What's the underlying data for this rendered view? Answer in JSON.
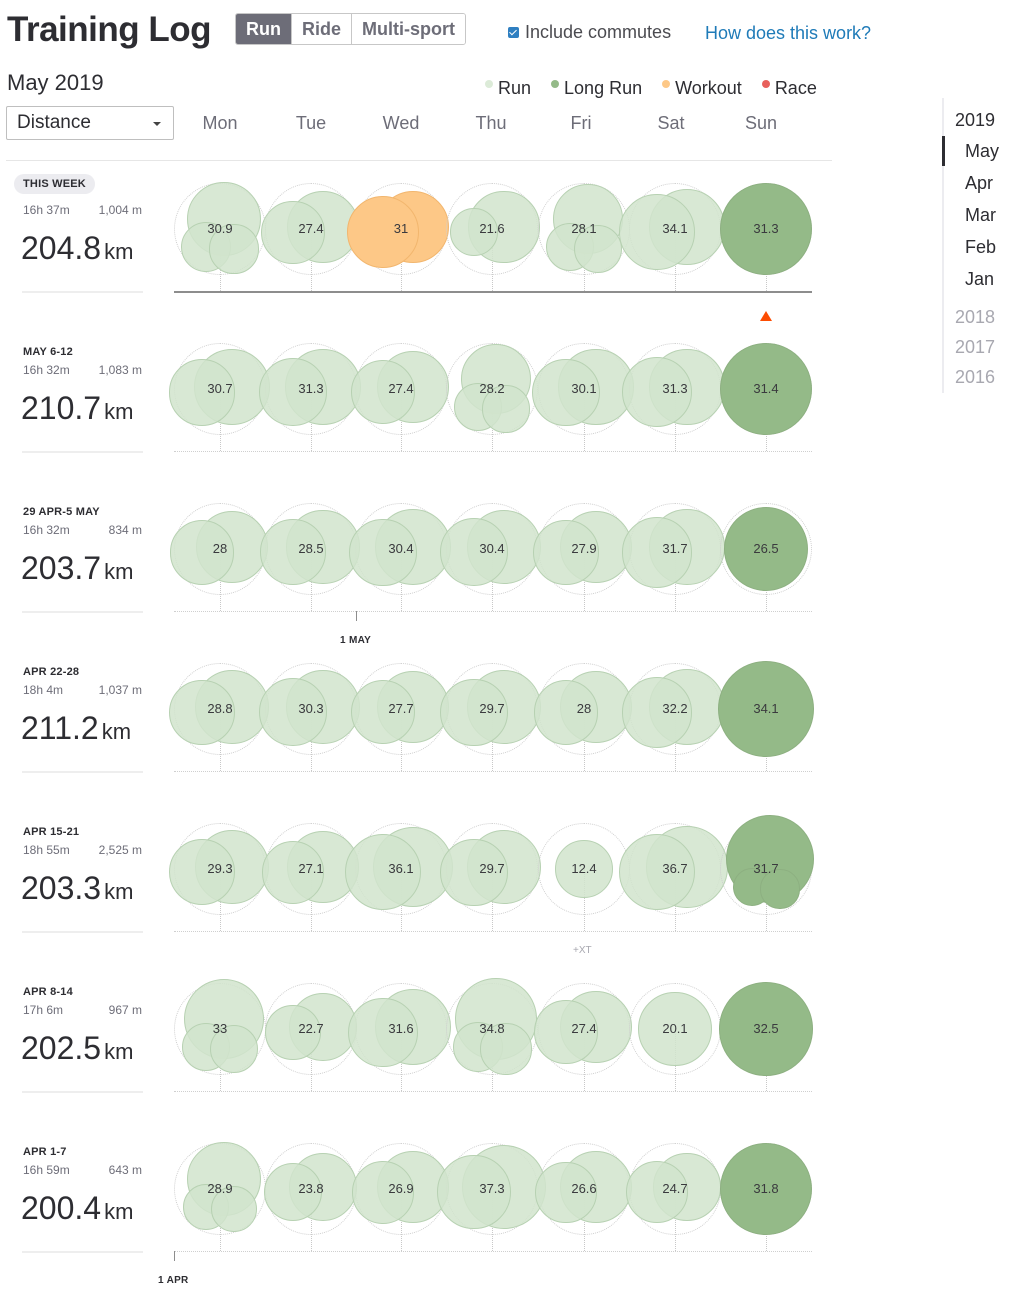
{
  "header": {
    "title": "Training Log",
    "sport_tabs": [
      "Run",
      "Ride",
      "Multi-sport"
    ],
    "active_sport": "Run",
    "commutes_label": "Include commutes",
    "commutes_checked": true,
    "help_link": "How does this work?"
  },
  "month_heading": "May 2019",
  "metric_select": {
    "value": "Distance"
  },
  "legend": [
    {
      "label": "Run",
      "color": "#dcebd8"
    },
    {
      "label": "Long Run",
      "color": "#94ba88"
    },
    {
      "label": "Workout",
      "color": "#fdc887"
    },
    {
      "label": "Race",
      "color": "#e8605c"
    }
  ],
  "days": [
    "Mon",
    "Tue",
    "Wed",
    "Thu",
    "Fri",
    "Sat",
    "Sun"
  ],
  "weeks": [
    {
      "label": "THIS WEEK",
      "time": "16h 37m",
      "elevation": "1,004 m",
      "distance": "204.8",
      "unit": "km",
      "current": true,
      "days": [
        {
          "value": "30.9",
          "type": "run",
          "activities": [
            16.4,
            7.4,
            7.1
          ]
        },
        {
          "value": "27.4",
          "type": "run",
          "activities": [
            15.6,
            11.8
          ]
        },
        {
          "value": "31",
          "type": "workout",
          "activities": [
            15.7,
            15.3
          ]
        },
        {
          "value": "21.6",
          "type": "run",
          "activities": [
            14.9,
            6.7
          ]
        },
        {
          "value": "28.1",
          "type": "run",
          "activities": [
            14.4,
            6.8,
            6.9
          ]
        },
        {
          "value": "34.1",
          "type": "run",
          "activities": [
            17.2,
            16.9
          ]
        },
        {
          "value": "31.3",
          "type": "long",
          "activities": [
            31.3
          ]
        }
      ]
    },
    {
      "label": "MAY 6-12",
      "time": "16h 32m",
      "elevation": "1,083 m",
      "distance": "210.7",
      "unit": "km",
      "days": [
        {
          "value": "30.7",
          "type": "run",
          "activities": [
            17.5,
            13.2
          ]
        },
        {
          "value": "31.3",
          "type": "run",
          "activities": [
            17.5,
            13.8
          ]
        },
        {
          "value": "27.4",
          "type": "run",
          "activities": [
            15.3,
            12.1
          ]
        },
        {
          "value": "28.2",
          "type": "run",
          "activities": [
            14.8,
            6.8,
            6.6
          ]
        },
        {
          "value": "30.1",
          "type": "run",
          "activities": [
            16.7,
            13.4
          ]
        },
        {
          "value": "31.3",
          "type": "run",
          "activities": [
            16.8,
            14.5
          ]
        },
        {
          "value": "31.4",
          "type": "long",
          "activities": [
            31.4
          ]
        }
      ]
    },
    {
      "label": "29 APR-5 MAY",
      "time": "16h 32m",
      "elevation": "834 m",
      "distance": "203.7",
      "unit": "km",
      "days": [
        {
          "value": "28",
          "type": "run",
          "activities": [
            15.6,
            12.4
          ]
        },
        {
          "value": "28.5",
          "type": "run",
          "activities": [
            15.8,
            12.7
          ]
        },
        {
          "value": "30.4",
          "type": "run",
          "activities": [
            17.0,
            13.4
          ]
        },
        {
          "value": "30.4",
          "type": "run",
          "activities": [
            16.6,
            13.8
          ]
        },
        {
          "value": "27.9",
          "type": "run",
          "activities": [
            15.4,
            12.5
          ]
        },
        {
          "value": "31.7",
          "type": "run",
          "activities": [
            16.9,
            14.8
          ]
        },
        {
          "value": "26.5",
          "type": "long",
          "activities": [
            26.5
          ]
        }
      ]
    },
    {
      "label": "APR 22-28",
      "time": "18h 4m",
      "elevation": "1,037 m",
      "distance": "211.2",
      "unit": "km",
      "days": [
        {
          "value": "28.8",
          "type": "run",
          "activities": [
            16.3,
            12.5
          ]
        },
        {
          "value": "30.3",
          "type": "run",
          "activities": [
            16.6,
            13.7
          ]
        },
        {
          "value": "27.7",
          "type": "run",
          "activities": [
            15.5,
            12.2
          ]
        },
        {
          "value": "29.7",
          "type": "run",
          "activities": [
            16.4,
            13.3
          ]
        },
        {
          "value": "28",
          "type": "run",
          "activities": [
            15.6,
            12.4
          ]
        },
        {
          "value": "32.2",
          "type": "run",
          "activities": [
            17.4,
            14.8
          ]
        },
        {
          "value": "34.1",
          "type": "long",
          "activities": [
            34.1
          ]
        }
      ]
    },
    {
      "label": "APR 15-21",
      "time": "18h 55m",
      "elevation": "2,525 m",
      "distance": "203.3",
      "unit": "km",
      "xt": "+XT",
      "xt_day": 4,
      "days": [
        {
          "value": "29.3",
          "type": "run",
          "activities": [
            16.5,
            12.8
          ]
        },
        {
          "value": "27.1",
          "type": "run",
          "activities": [
            15.4,
            11.7
          ]
        },
        {
          "value": "36.1",
          "type": "run",
          "activities": [
            19.0,
            17.1
          ]
        },
        {
          "value": "29.7",
          "type": "run",
          "activities": [
            16.4,
            13.3
          ]
        },
        {
          "value": "12.4",
          "type": "run",
          "activities": [
            12.4
          ]
        },
        {
          "value": "36.7",
          "type": "run",
          "activities": [
            19.4,
            17.3
          ]
        },
        {
          "value": "31.7",
          "type": "long",
          "activities": [
            22.8,
            4.4,
            4.5
          ]
        }
      ]
    },
    {
      "label": "APR 8-14",
      "time": "17h 6m",
      "elevation": "967 m",
      "distance": "202.5",
      "unit": "km",
      "days": [
        {
          "value": "33",
          "type": "run",
          "activities": [
            19.2,
            6.8,
            7.0
          ]
        },
        {
          "value": "22.7",
          "type": "run",
          "activities": [
            13.7,
            9.0
          ]
        },
        {
          "value": "31.6",
          "type": "run",
          "activities": [
            17.4,
            14.2
          ]
        },
        {
          "value": "34.8",
          "type": "run",
          "activities": [
            19.6,
            7.5,
            7.7
          ]
        },
        {
          "value": "27.4",
          "type": "run",
          "activities": [
            15.5,
            11.9
          ]
        },
        {
          "value": "20.1",
          "type": "run",
          "activities": [
            20.1
          ]
        },
        {
          "value": "32.5",
          "type": "long",
          "activities": [
            32.5
          ]
        }
      ]
    },
    {
      "label": "APR 1-7",
      "time": "16h 59m",
      "elevation": "643 m",
      "distance": "200.4",
      "unit": "km",
      "days": [
        {
          "value": "28.9",
          "type": "run",
          "activities": [
            16.5,
            6.2,
            6.2
          ]
        },
        {
          "value": "23.8",
          "type": "run",
          "activities": [
            13.7,
            10.1
          ]
        },
        {
          "value": "26.9",
          "type": "run",
          "activities": [
            15.3,
            11.6
          ]
        },
        {
          "value": "37.3",
          "type": "run",
          "activities": [
            21.3,
            16.0
          ]
        },
        {
          "value": "26.6",
          "type": "run",
          "activities": [
            15.5,
            11.1
          ]
        },
        {
          "value": "24.7",
          "type": "run",
          "activities": [
            13.4,
            11.3
          ]
        },
        {
          "value": "31.8",
          "type": "long",
          "activities": [
            31.8
          ]
        }
      ]
    }
  ],
  "date_markers": [
    {
      "label": "1 MAY",
      "week": 2,
      "day": 2
    },
    {
      "label": "1 APR",
      "week": 6,
      "day": 0
    }
  ],
  "year_nav": {
    "current_year": "2019",
    "months": [
      "May",
      "Apr",
      "Mar",
      "Feb",
      "Jan"
    ],
    "active_month": "May",
    "other_years": [
      "2018",
      "2017",
      "2016"
    ]
  }
}
